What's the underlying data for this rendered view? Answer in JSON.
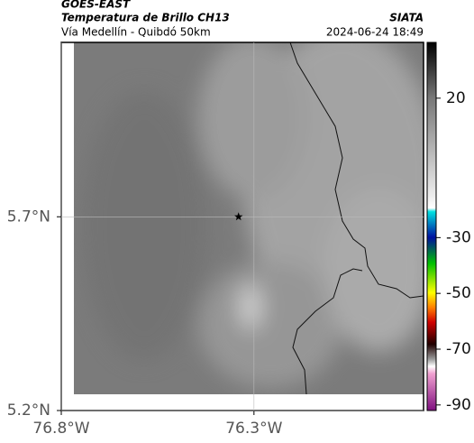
{
  "chart_data": {
    "type": "map",
    "title": "GOES-EAST",
    "subtitle": "Temperatura de Brillo CH13",
    "source": "SIATA",
    "region": "Vía Medellín - Quibdó 50km",
    "datetime": "2024-06-24 18:49",
    "xlim": [
      -76.8,
      -75.86
    ],
    "ylim": [
      5.2,
      6.15
    ],
    "xticks": [
      {
        "value": -76.8,
        "label": "76.8°W"
      },
      {
        "value": -76.3,
        "label": "76.3°W"
      }
    ],
    "yticks": [
      {
        "value": 5.2,
        "label": "5.2°N"
      },
      {
        "value": 5.7,
        "label": "5.7°N"
      }
    ],
    "grid": true,
    "marker": {
      "lon": -76.34,
      "lat": 5.7
    },
    "colorbar": {
      "lim": [
        -92,
        40
      ],
      "ticks": [
        20,
        -30,
        -50,
        -70,
        -90
      ]
    }
  }
}
